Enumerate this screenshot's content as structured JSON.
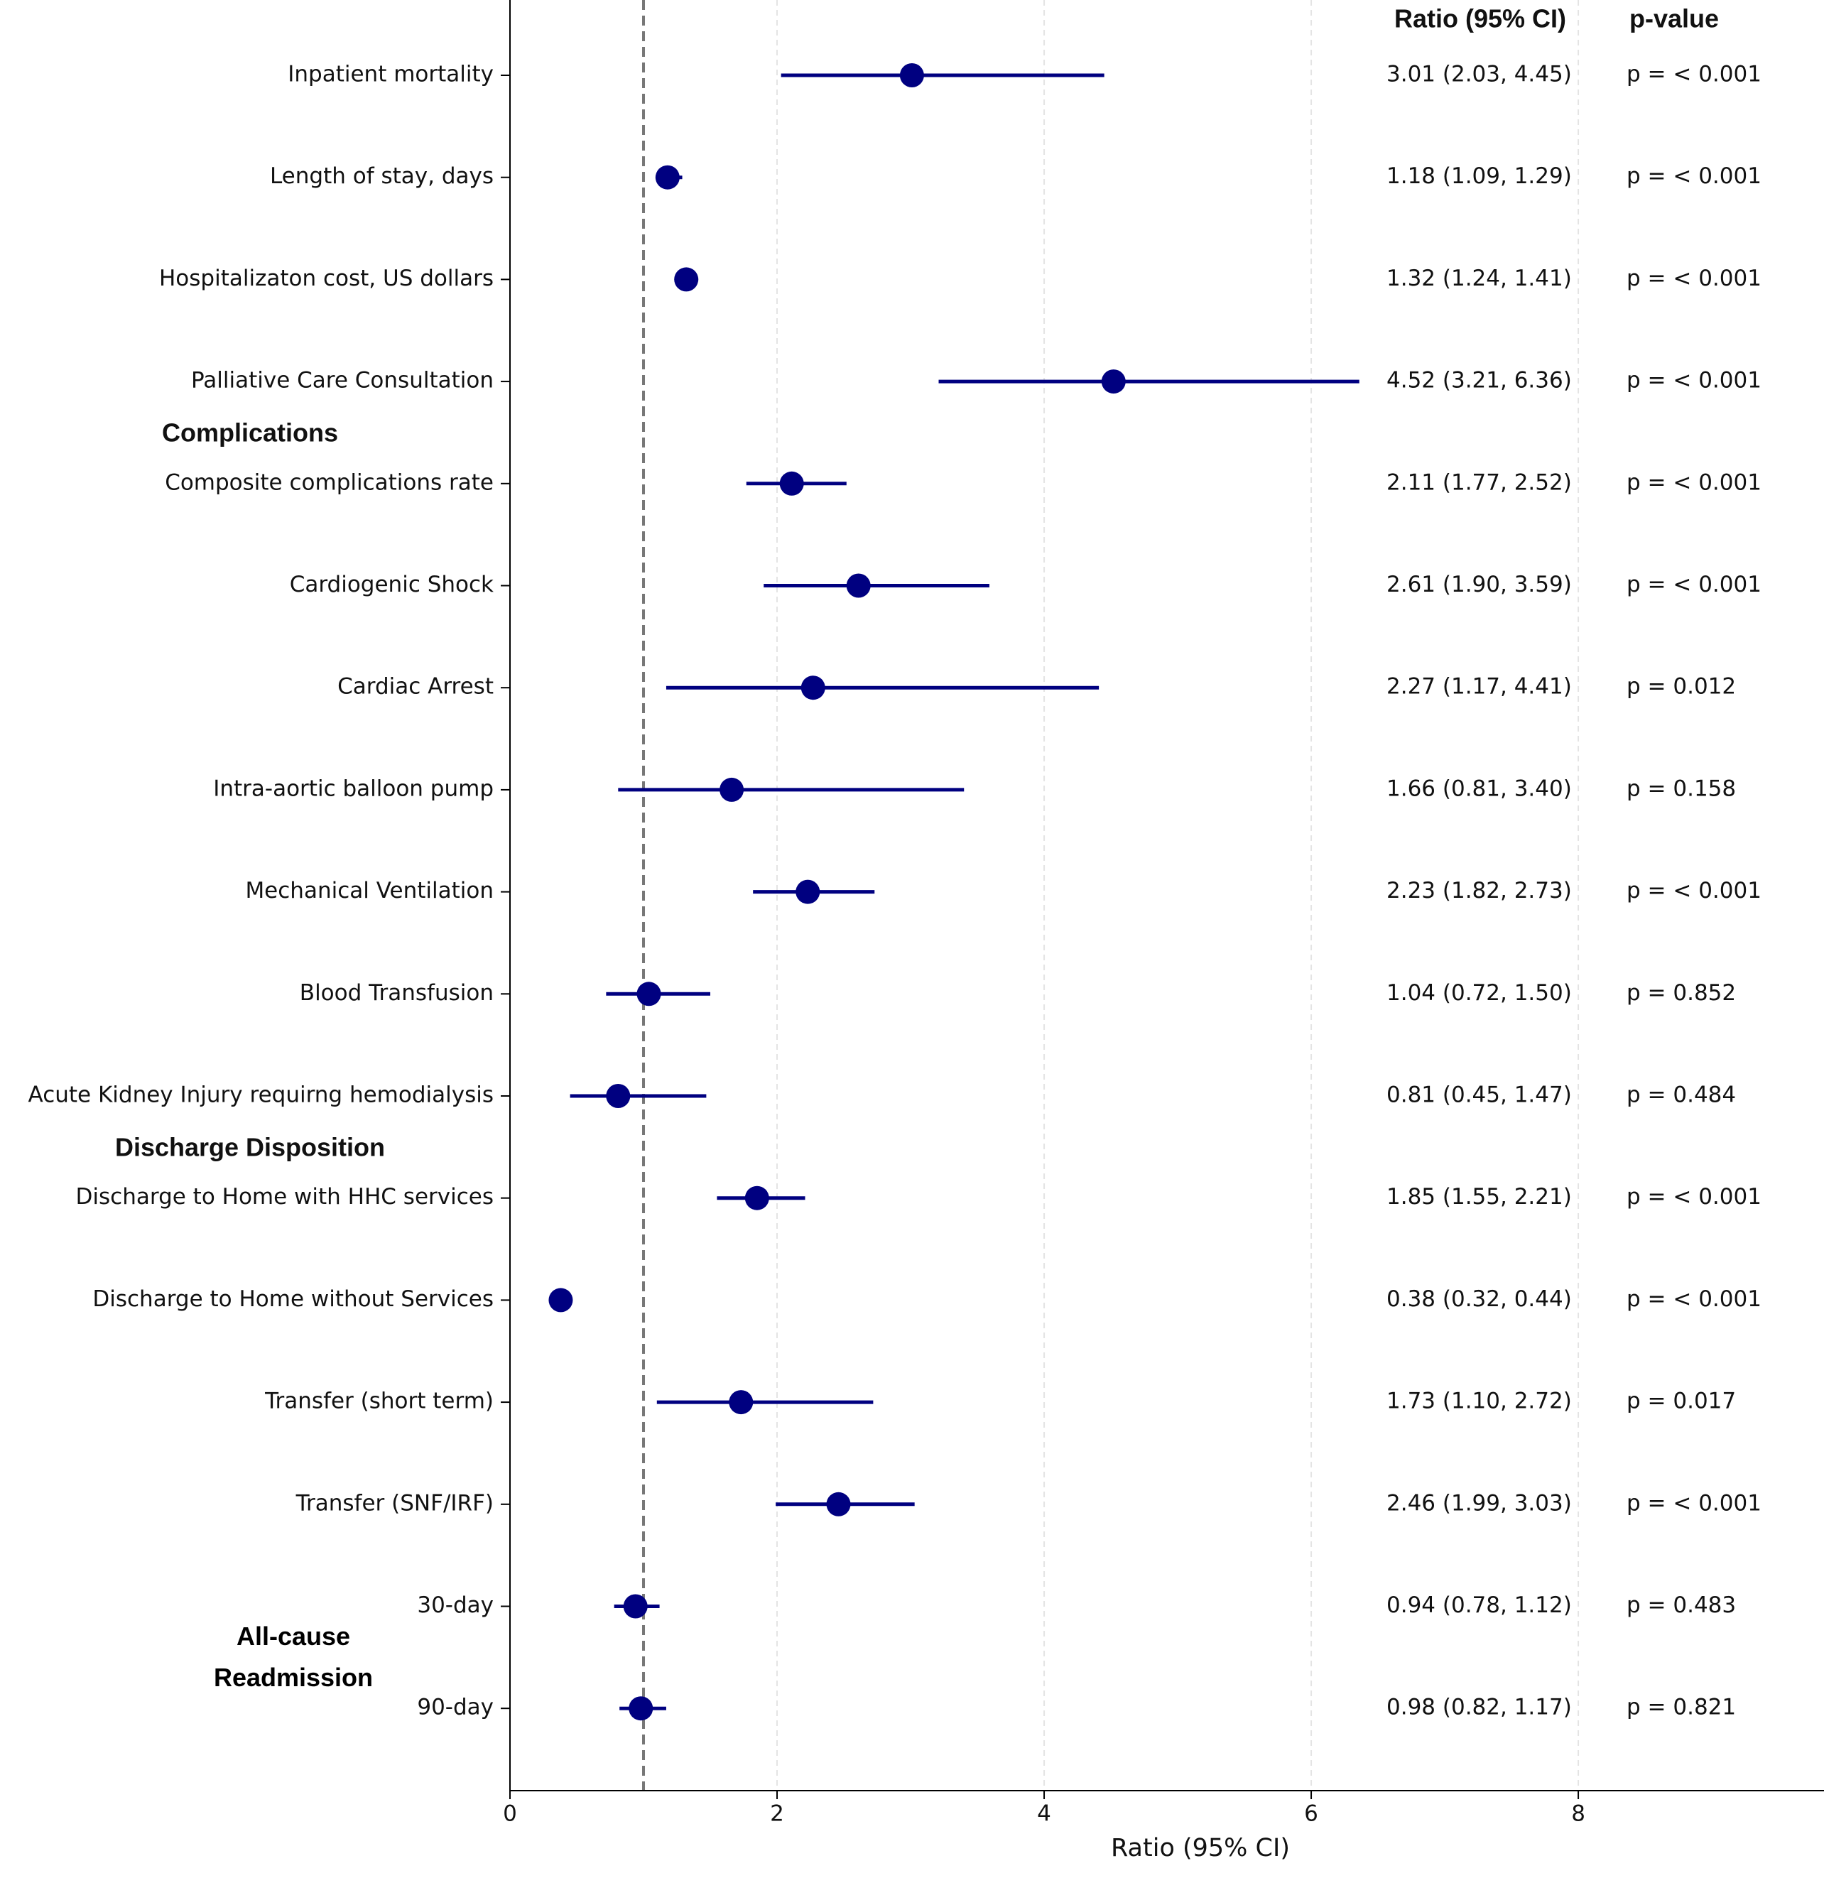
{
  "chart_data": {
    "type": "forest",
    "xlabel": "Ratio (95% CI)",
    "column_headers": [
      "Ratio (95% CI)",
      "p-value"
    ],
    "xlim": [
      0,
      9.84
    ],
    "xticks": [
      0,
      2,
      4,
      6,
      8
    ],
    "grid": true,
    "reference_line": 1,
    "color": "#000080",
    "sections": [
      {
        "heading": null,
        "categories": [
          "Inpatient mortality",
          "Length of stay, days",
          "Hospitalizaton cost, US dollars",
          "Palliative Care Consultation"
        ],
        "values": [
          3.01,
          1.18,
          1.32,
          4.52
        ],
        "ci_lower": [
          2.03,
          1.09,
          1.24,
          3.21
        ],
        "ci_upper": [
          4.45,
          1.29,
          1.41,
          6.36
        ],
        "value_labels": [
          "3.01 (2.03, 4.45)",
          "1.18 (1.09, 1.29)",
          "1.32 (1.24, 1.41)",
          "4.52 (3.21, 6.36)"
        ],
        "p_labels": [
          "p = < 0.001",
          "p = < 0.001",
          "p = < 0.001",
          "p = < 0.001"
        ]
      },
      {
        "heading": "Complications",
        "categories": [
          "Composite complications rate",
          "Cardiogenic Shock",
          "Cardiac Arrest",
          "Intra-aortic balloon pump",
          "Mechanical Ventilation",
          "Blood Transfusion",
          "Acute Kidney Injury requirng hemodialysis"
        ],
        "values": [
          2.11,
          2.61,
          2.27,
          1.66,
          2.23,
          1.04,
          0.81
        ],
        "ci_lower": [
          1.77,
          1.9,
          1.17,
          0.81,
          1.82,
          0.72,
          0.45
        ],
        "ci_upper": [
          2.52,
          3.59,
          4.41,
          3.4,
          2.73,
          1.5,
          1.47
        ],
        "value_labels": [
          "2.11 (1.77, 2.52)",
          "2.61 (1.90, 3.59)",
          "2.27 (1.17, 4.41)",
          "1.66 (0.81, 3.40)",
          "2.23 (1.82, 2.73)",
          "1.04 (0.72, 1.50)",
          "0.81 (0.45, 1.47)"
        ],
        "p_labels": [
          "p = < 0.001",
          "p = < 0.001",
          "p = 0.012",
          "p = 0.158",
          "p = < 0.001",
          "p = 0.852",
          "p = 0.484"
        ]
      },
      {
        "heading": "Discharge Disposition",
        "categories": [
          "Discharge to Home with HHC services",
          "Discharge to Home without Services",
          "Transfer (short term)",
          "Transfer  (SNF/IRF)"
        ],
        "values": [
          1.85,
          0.38,
          1.73,
          2.46
        ],
        "ci_lower": [
          1.55,
          0.32,
          1.1,
          1.99
        ],
        "ci_upper": [
          2.21,
          0.44,
          2.72,
          3.03
        ],
        "value_labels": [
          "1.85 (1.55, 2.21)",
          "0.38 (0.32, 0.44)",
          "1.73 (1.10, 2.72)",
          "2.46 (1.99, 3.03)"
        ],
        "p_labels": [
          "p = < 0.001",
          "p = < 0.001",
          "p = 0.017",
          "p = < 0.001"
        ]
      },
      {
        "heading": "All-cause Readmission",
        "categories": [
          "30-day",
          "90-day"
        ],
        "values": [
          0.94,
          0.98
        ],
        "ci_lower": [
          0.78,
          0.82
        ],
        "ci_upper": [
          1.12,
          1.17
        ],
        "value_labels": [
          "0.94 (0.78, 1.12)",
          "0.98 (0.82, 1.17)"
        ],
        "p_labels": [
          "p = 0.483",
          "p = 0.821"
        ]
      }
    ]
  }
}
